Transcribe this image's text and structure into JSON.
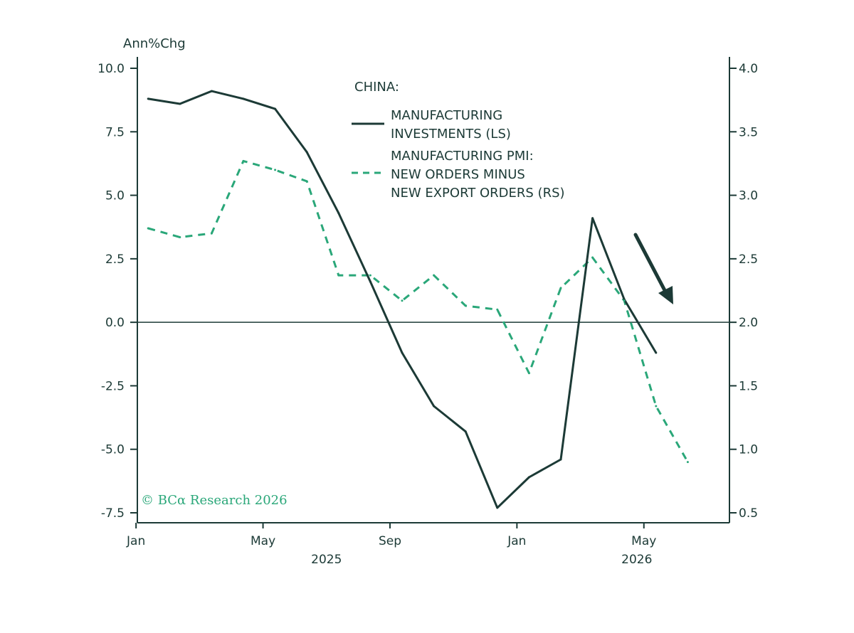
{
  "chart_data": {
    "type": "line",
    "title": "",
    "unit_label": "Ann%Chg",
    "legend_header": "CHINA:",
    "legend_placement": "top-center",
    "copyright": "© BCα Research 2026",
    "grid": false,
    "x_ticks": [
      "Jan",
      "May",
      "Sep",
      "Jan",
      "May"
    ],
    "x_years": [
      "2025",
      "2026"
    ],
    "x_range": [
      "2025-01",
      "2026-08"
    ],
    "y_left": {
      "ticks": [
        "10.0",
        "7.5",
        "5.0",
        "2.5",
        "0.0",
        "-2.5",
        "-5.0",
        "-7.5"
      ],
      "range": [
        -7.5,
        10.0
      ]
    },
    "y_right": {
      "ticks": [
        "4.0",
        "3.5",
        "3.0",
        "2.5",
        "2.0",
        "1.5",
        "1.0",
        "0.5"
      ],
      "range": [
        0.5,
        4.0
      ]
    },
    "zero_line": 0.0,
    "series": [
      {
        "name": "MANUFACTURING INVESTMENTS (LS)",
        "legend_lines": [
          "MANUFACTURING",
          "INVESTMENTS (LS)"
        ],
        "axis": "left",
        "style": "solid",
        "color": "#1c3a36",
        "x": [
          "2025-01",
          "2025-02",
          "2025-03",
          "2025-04",
          "2025-05",
          "2025-06",
          "2025-07",
          "2025-08",
          "2025-09",
          "2025-10",
          "2025-11",
          "2025-12",
          "2026-01",
          "2026-02",
          "2026-03",
          "2026-04",
          "2026-05"
        ],
        "values": [
          8.8,
          8.6,
          9.1,
          8.8,
          8.4,
          6.7,
          4.3,
          1.6,
          -1.2,
          -3.3,
          -4.3,
          -7.3,
          -6.1,
          -5.4,
          4.1,
          0.9,
          -1.2
        ]
      },
      {
        "name": "MANUFACTURING PMI: NEW ORDERS MINUS NEW EXPORT ORDERS (RS)",
        "legend_lines": [
          "MANUFACTURING PMI:",
          "NEW ORDERS MINUS",
          "NEW EXPORT ORDERS (RS)"
        ],
        "axis": "right",
        "style": "dashed",
        "color": "#2aa779",
        "x": [
          "2025-01",
          "2025-02",
          "2025-03",
          "2025-04",
          "2025-05",
          "2025-06",
          "2025-07",
          "2025-08",
          "2025-09",
          "2025-10",
          "2025-11",
          "2025-12",
          "2026-01",
          "2026-02",
          "2026-03",
          "2026-04",
          "2026-05",
          "2026-06"
        ],
        "values": [
          2.74,
          2.67,
          2.7,
          3.27,
          3.2,
          3.11,
          2.37,
          2.37,
          2.17,
          2.37,
          2.13,
          2.1,
          1.6,
          2.27,
          2.51,
          2.17,
          1.34,
          0.9
        ]
      }
    ],
    "annotations": [
      {
        "type": "arrow",
        "direction": "down-right",
        "color": "#1c3a36"
      }
    ]
  }
}
